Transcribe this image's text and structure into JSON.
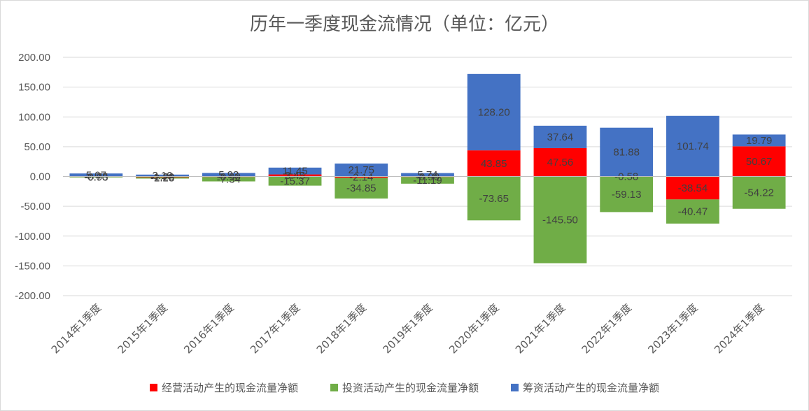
{
  "chart_data": {
    "type": "bar",
    "stacked": true,
    "title": "历年一季度现金流情况（单位：亿元）",
    "xlabel": "",
    "ylabel": "",
    "ylim": [
      -200,
      200
    ],
    "yticks": [
      "200.00",
      "150.00",
      "100.00",
      "50.00",
      "0.00",
      "-50.00",
      "-100.00",
      "-150.00",
      "-200.00"
    ],
    "grid": true,
    "legend_position": "bottom",
    "categories": [
      "2014年1季度",
      "2015年1季度",
      "2016年1季度",
      "2017年1季度",
      "2018年1季度",
      "2019年1季度",
      "2020年1季度",
      "2021年1季度",
      "2022年1季度",
      "2023年1季度",
      "2024年1季度"
    ],
    "series": [
      {
        "name": "经营活动产生的现金流量净额",
        "color": "#ff0000",
        "values": [
          -0.75,
          -1.2,
          -0.9,
          3.45,
          -2.14,
          -0.9,
          43.85,
          47.56,
          -0.58,
          -38.54,
          50.67
        ],
        "labels": [
          "-0.75",
          "-1.20",
          "-0.90",
          "3.45",
          "-2.14",
          "-0.90",
          "43.85",
          "47.56",
          "-0.58",
          "-38.54",
          "50.67"
        ]
      },
      {
        "name": "投资活动产生的现金流量净额",
        "color": "#70ad47",
        "values": [
          -0.93,
          -2.28,
          -7.34,
          -15.37,
          -34.85,
          -11.19,
          -73.65,
          -145.5,
          -59.13,
          -40.47,
          -54.22
        ],
        "labels": [
          "-0.93",
          "-2.28",
          "-7.34",
          "-15.37",
          "-34.85",
          "-11.19",
          "-73.65",
          "-145.50",
          "-59.13",
          "-40.47",
          "-54.22"
        ]
      },
      {
        "name": "筹资活动产生的现金流量净额",
        "color": "#4472c4",
        "values": [
          5.07,
          3.19,
          5.93,
          11.45,
          21.75,
          5.74,
          128.2,
          37.64,
          81.88,
          101.74,
          19.79
        ],
        "labels": [
          "5.07",
          "3.19",
          "5.93",
          "11.45",
          "21.75",
          "5.74",
          "128.20",
          "37.64",
          "81.88",
          "101.74",
          "19.79"
        ]
      }
    ]
  }
}
